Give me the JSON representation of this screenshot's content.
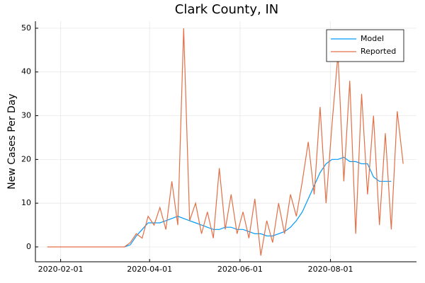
{
  "chart_data": {
    "type": "line",
    "title": "Clark County, IN",
    "y_label": "New Cases Per Day",
    "x": [
      "2020-01-23",
      "2020-01-27",
      "2020-01-31",
      "2020-02-04",
      "2020-02-08",
      "2020-02-12",
      "2020-02-16",
      "2020-02-20",
      "2020-02-24",
      "2020-02-28",
      "2020-03-03",
      "2020-03-07",
      "2020-03-11",
      "2020-03-15",
      "2020-03-19",
      "2020-03-23",
      "2020-03-27",
      "2020-03-31",
      "2020-04-04",
      "2020-04-08",
      "2020-04-12",
      "2020-04-16",
      "2020-04-20",
      "2020-04-24",
      "2020-04-28",
      "2020-05-02",
      "2020-05-06",
      "2020-05-10",
      "2020-05-14",
      "2020-05-18",
      "2020-05-22",
      "2020-05-26",
      "2020-05-30",
      "2020-06-03",
      "2020-06-07",
      "2020-06-11",
      "2020-06-15",
      "2020-06-19",
      "2020-06-23",
      "2020-06-27",
      "2020-07-01",
      "2020-07-05",
      "2020-07-09",
      "2020-07-13",
      "2020-07-17",
      "2020-07-21",
      "2020-07-25",
      "2020-07-29",
      "2020-08-02",
      "2020-08-06",
      "2020-08-10",
      "2020-08-14",
      "2020-08-18",
      "2020-08-22",
      "2020-08-26",
      "2020-08-30",
      "2020-09-03",
      "2020-09-07",
      "2020-09-11",
      "2020-09-15",
      "2020-09-19"
    ],
    "series": [
      {
        "name": "Model",
        "color": "#009af9",
        "values": [
          null,
          null,
          null,
          null,
          null,
          null,
          null,
          null,
          null,
          null,
          null,
          null,
          null,
          0,
          0.5,
          2.5,
          4,
          5.5,
          5.5,
          5.5,
          6,
          6.5,
          7,
          6.5,
          6,
          5.5,
          5,
          4.5,
          4,
          4,
          4.5,
          4.5,
          4,
          4,
          3.5,
          3,
          3,
          2.5,
          2.5,
          3,
          3.5,
          4.5,
          6,
          8,
          11,
          14,
          17,
          19,
          20,
          20,
          20.5,
          19.5,
          19.5,
          19,
          19,
          16,
          15,
          15,
          15,
          null,
          null
        ]
      },
      {
        "name": "Reported",
        "color": "#e26f46",
        "values": [
          0,
          0,
          0,
          0,
          0,
          0,
          0,
          0,
          0,
          0,
          0,
          0,
          0,
          0,
          1,
          3,
          2,
          7,
          5,
          9,
          4,
          15,
          5,
          50,
          6,
          10,
          3,
          8,
          2,
          18,
          4,
          12,
          3,
          8,
          2,
          11,
          -2,
          6,
          1,
          10,
          3,
          12,
          7,
          15,
          24,
          12,
          32,
          10,
          28,
          44,
          15,
          38,
          3,
          35,
          12,
          30,
          5,
          26,
          4,
          31,
          19
        ]
      }
    ],
    "xlim": [
      "2020-01-15",
      "2020-09-28"
    ],
    "xticks": [
      "2020-02-01",
      "2020-04-01",
      "2020-06-01",
      "2020-08-01"
    ],
    "ylim": [
      -3.4,
      51.6
    ],
    "yticks": [
      0,
      10,
      20,
      30,
      40,
      50
    ],
    "grid": true,
    "legend": "top-right"
  }
}
